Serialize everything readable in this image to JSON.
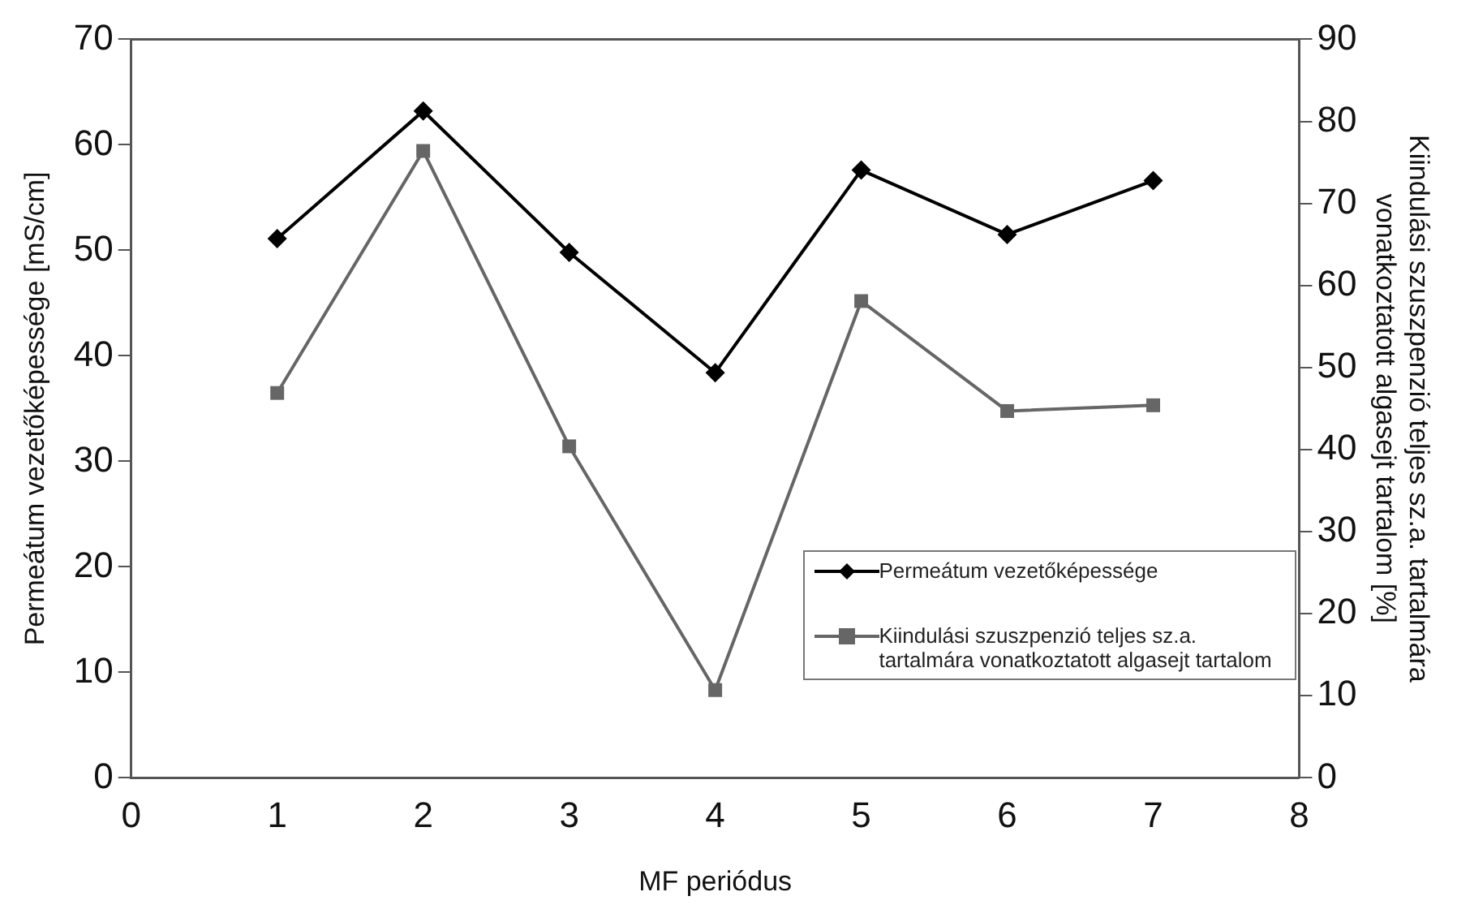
{
  "chart_data": {
    "type": "line",
    "xlabel": "MF periódus",
    "ylabel": "Permeátum vezetőképessége [mS/cm]",
    "y2label": "Kiindulási szuszpenzió teljes sz.a. tartalmára vonatkoztatott algasejt tartalom [%]",
    "x": [
      1,
      2,
      3,
      4,
      5,
      6,
      7
    ],
    "series": [
      {
        "name": "Permeátum vezetőképessége",
        "color": "#000000",
        "marker": "diamond",
        "values": [
          51.1,
          63.2,
          49.8,
          38.4,
          57.6,
          51.5,
          56.6
        ]
      },
      {
        "name": "Kiindulási szuszpenzió teljes sz.a. tartalmára vonatkoztatott algasejt tartalom",
        "color": "#666666",
        "marker": "square",
        "axis": "y2",
        "values": [
          46.9,
          76.4,
          40.4,
          10.7,
          58.1,
          44.7,
          45.4
        ]
      }
    ],
    "xlim": [
      0,
      8
    ],
    "xticks": [
      0,
      1,
      2,
      3,
      4,
      5,
      6,
      7,
      8
    ],
    "ylim": [
      0,
      70
    ],
    "yticks": [
      0,
      10,
      20,
      30,
      40,
      50,
      60,
      70
    ],
    "y2lim": [
      0,
      90
    ],
    "y2ticks": [
      0,
      10,
      20,
      30,
      40,
      50,
      60,
      70,
      80,
      90
    ],
    "grid": false,
    "legend": "bottom right",
    "line_style": "solid"
  }
}
